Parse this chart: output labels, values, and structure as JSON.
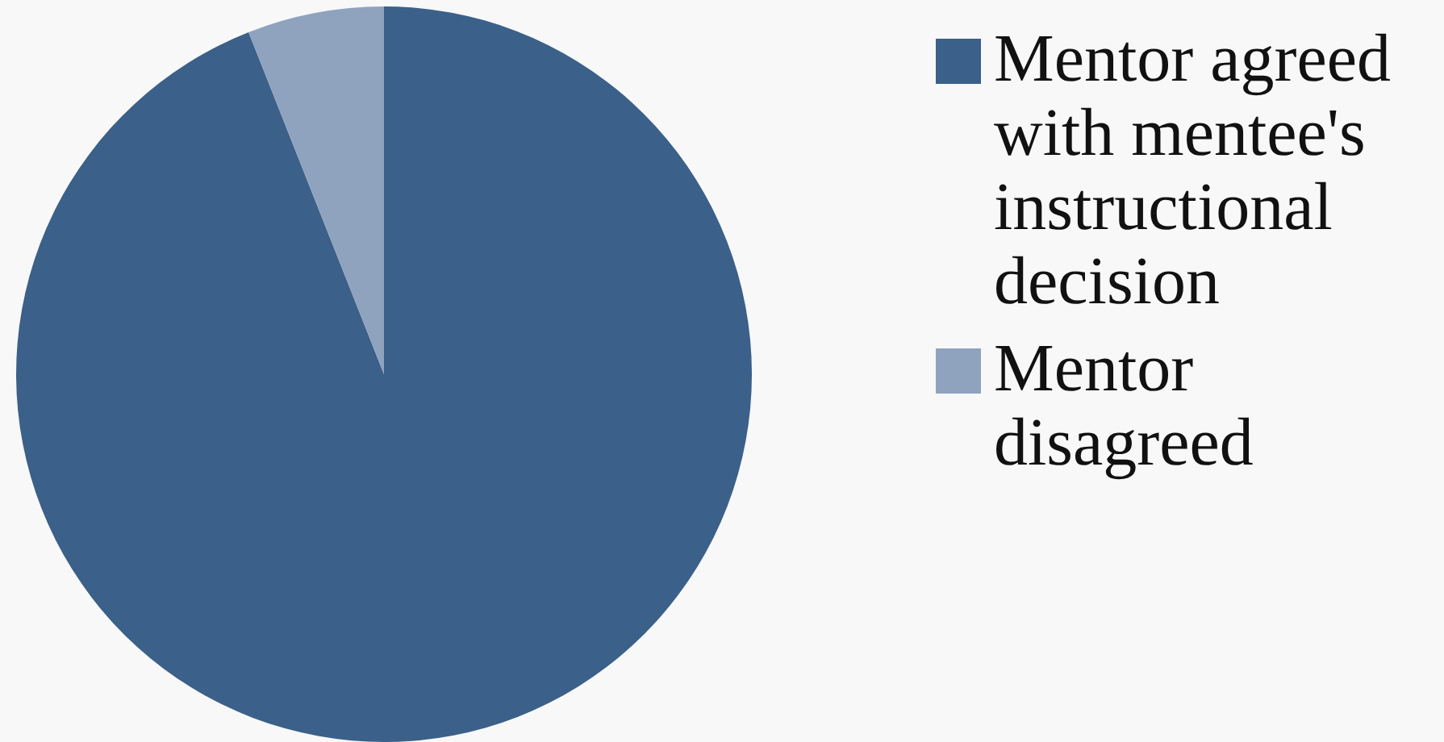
{
  "chart_data": {
    "type": "pie",
    "categories": [
      "Mentor agreed with mentee's instructional decision",
      "Mentor disagreed"
    ],
    "values": [
      94,
      6
    ],
    "colors": [
      "#3b6089",
      "#8fa3be"
    ],
    "legend": "right"
  }
}
